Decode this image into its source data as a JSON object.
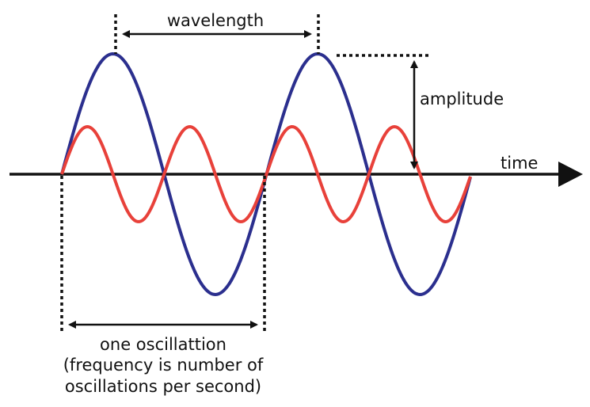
{
  "labels": {
    "wavelength": "wavelength",
    "amplitude": "amplitude",
    "time": "time",
    "oscillation": [
      "one oscillattion",
      "(frequency is number of",
      "oscillations per second)"
    ]
  }
}
